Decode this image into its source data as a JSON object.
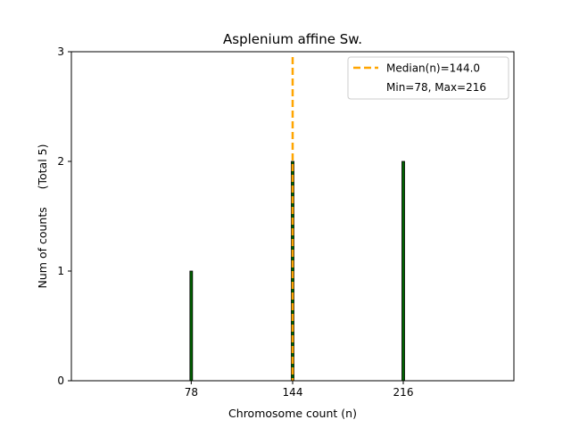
{
  "chart_data": {
    "type": "bar",
    "title": "Asplenium affine Sw.",
    "xlabel": "Chromosome count (n)",
    "ylabel": "Num of counts     (Total 5)",
    "x": [
      78,
      144,
      216
    ],
    "values": [
      1,
      2,
      2
    ],
    "xlim": [
      0,
      288
    ],
    "ylim": [
      0,
      3
    ],
    "xticks": [
      78,
      144,
      216
    ],
    "yticks": [
      0,
      1,
      2,
      3
    ],
    "bar_color": "#006400",
    "bar_edge_color": "#000000",
    "median": 144.0,
    "median_color": "#FFA500",
    "legend": {
      "position": "top-right",
      "entries": [
        "Median(n)=144.0",
        "Min=78, Max=216"
      ]
    },
    "grid": false
  }
}
